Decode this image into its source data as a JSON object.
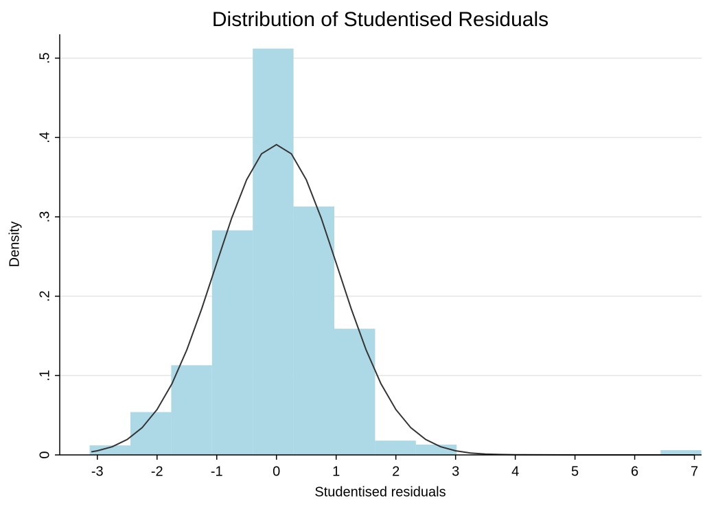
{
  "chart_data": {
    "type": "histogram",
    "title": "Distribution of Studentised Residuals",
    "x_label": "Studentised residuals",
    "y_label": "Density",
    "bins": [
      -3.129,
      -2.446,
      -1.763,
      -1.08,
      -0.397,
      0.286,
      0.969,
      1.652,
      2.335,
      3.018,
      3.701,
      4.384,
      5.067,
      5.75,
      6.433,
      7.116
    ],
    "values": [
      0.012,
      0.054,
      0.113,
      0.283,
      0.512,
      0.313,
      0.159,
      0.018,
      0.013,
      0,
      0,
      0,
      0,
      0,
      0.006
    ],
    "color": "#add8e6",
    "density_curve": {
      "type": "line",
      "color": "#333333",
      "x": [
        -3.1,
        -3,
        -2.75,
        -2.5,
        -2.25,
        -2,
        -1.75,
        -1.5,
        -1.25,
        -1,
        -0.75,
        -0.5,
        -0.25,
        0,
        0.25,
        0.5,
        0.75,
        1,
        1.25,
        1.5,
        1.75,
        2,
        2.25,
        2.5,
        2.75,
        3,
        3.25,
        3.5,
        3.75,
        4,
        5,
        6,
        7
      ],
      "values": [
        0.0039,
        0.0052,
        0.0103,
        0.0194,
        0.0343,
        0.0572,
        0.0897,
        0.1326,
        0.1846,
        0.2418,
        0.2984,
        0.3467,
        0.3794,
        0.391,
        0.3794,
        0.3467,
        0.2984,
        0.2418,
        0.1846,
        0.1326,
        0.0897,
        0.0572,
        0.0343,
        0.0194,
        0.0103,
        0.0052,
        0.0024,
        0.0011,
        0.0005,
        0.0002,
        0,
        0,
        0
      ]
    },
    "xlim": [
      -3.63,
      7.12
    ],
    "ylim": [
      0,
      0.53
    ],
    "xticks": [
      -3,
      -2,
      -1,
      0,
      1,
      2,
      3,
      4,
      5,
      6,
      7
    ],
    "yticks": [
      0,
      {
        "value": 0.1,
        "label": ".1"
      },
      {
        "value": 0.2,
        "label": ".2"
      },
      {
        "value": 0.3,
        "label": ".3"
      },
      {
        "value": 0.4,
        "label": ".4"
      },
      {
        "value": 0.5,
        "label": ".5"
      }
    ],
    "grid": true
  }
}
